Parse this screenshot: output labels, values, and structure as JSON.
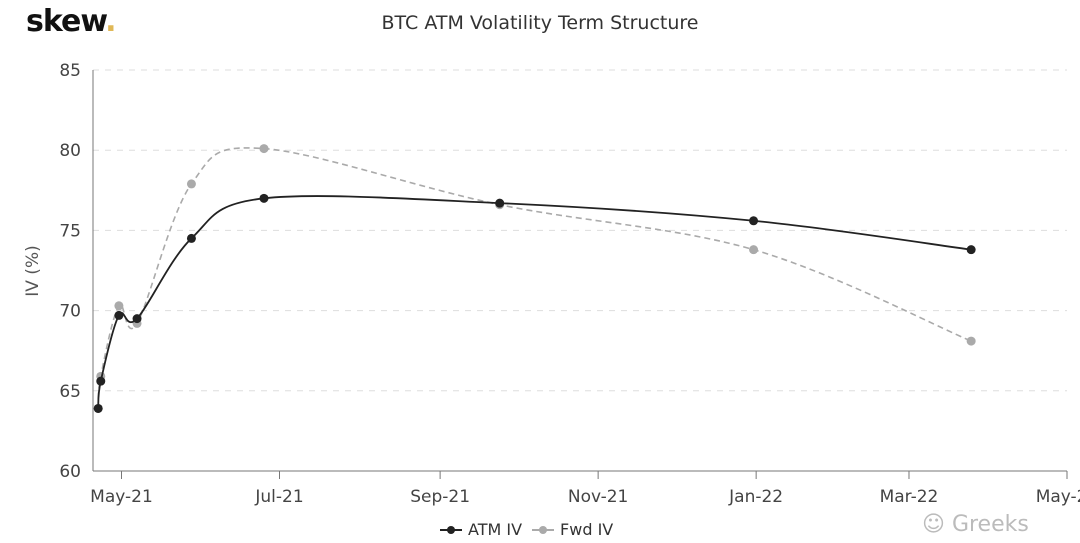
{
  "logo": {
    "text": "skew",
    "dot": ".",
    "dot_color": "#e0b857"
  },
  "watermark": "Greeks",
  "chart_data": {
    "type": "line",
    "title": "BTC ATM Volatility Term Structure",
    "xlabel": "",
    "ylabel": "IV (%)",
    "ylim": [
      60,
      85
    ],
    "yticks": [
      60,
      65,
      70,
      75,
      80,
      85
    ],
    "xlim": [
      "2021-04-20",
      "2022-05-01"
    ],
    "xticks": [
      {
        "date": "2021-05-01",
        "label": "May-21"
      },
      {
        "date": "2021-07-01",
        "label": "Jul-21"
      },
      {
        "date": "2021-09-01",
        "label": "Sep-21"
      },
      {
        "date": "2021-11-01",
        "label": "Nov-21"
      },
      {
        "date": "2022-01-01",
        "label": "Jan-22"
      },
      {
        "date": "2022-03-01",
        "label": "Mar-22"
      },
      {
        "date": "2022-05-01",
        "label": "May-22"
      }
    ],
    "grid": "horizontal dashed",
    "legend_position": "bottom",
    "series": [
      {
        "name": "ATM IV",
        "color": "#222222",
        "style": "solid",
        "x": [
          "2021-04-22",
          "2021-04-23",
          "2021-04-30",
          "2021-05-07",
          "2021-05-28",
          "2021-06-25",
          "2021-09-24",
          "2021-12-31",
          "2022-03-25"
        ],
        "values": [
          63.9,
          65.6,
          69.7,
          69.5,
          74.5,
          77.0,
          76.7,
          75.6,
          73.8
        ]
      },
      {
        "name": "Fwd IV",
        "color": "#aaaaaa",
        "style": "dashed",
        "x": [
          "2021-04-22",
          "2021-04-23",
          "2021-04-30",
          "2021-05-07",
          "2021-05-28",
          "2021-06-25",
          "2021-09-24",
          "2021-12-31",
          "2022-03-25"
        ],
        "values": [
          63.9,
          65.9,
          70.3,
          69.2,
          77.9,
          80.1,
          76.6,
          73.8,
          68.1
        ]
      }
    ]
  }
}
